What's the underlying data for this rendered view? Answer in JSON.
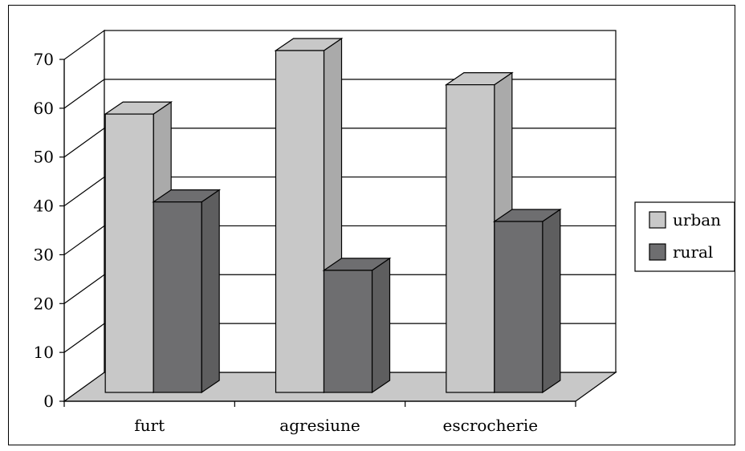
{
  "chart_data": {
    "type": "bar",
    "style": "3d-clustered-column",
    "title": "",
    "xlabel": "",
    "ylabel": "",
    "categories": [
      "furt",
      "agresiune",
      "escrocherie"
    ],
    "series": [
      {
        "name": "urban",
        "values": [
          57,
          70,
          63
        ],
        "color": "#c8c8c8"
      },
      {
        "name": "rural",
        "values": [
          39,
          25,
          35
        ],
        "color": "#6e6e70"
      }
    ],
    "ylim": [
      0,
      70
    ],
    "yticks": [
      "0",
      "10",
      "20",
      "30",
      "40",
      "50",
      "60",
      "70"
    ],
    "grid": true,
    "legend_position": "right",
    "colors": {
      "walls": "#ffffff",
      "floor": "#c8c8c8",
      "lines": "#000000"
    }
  }
}
